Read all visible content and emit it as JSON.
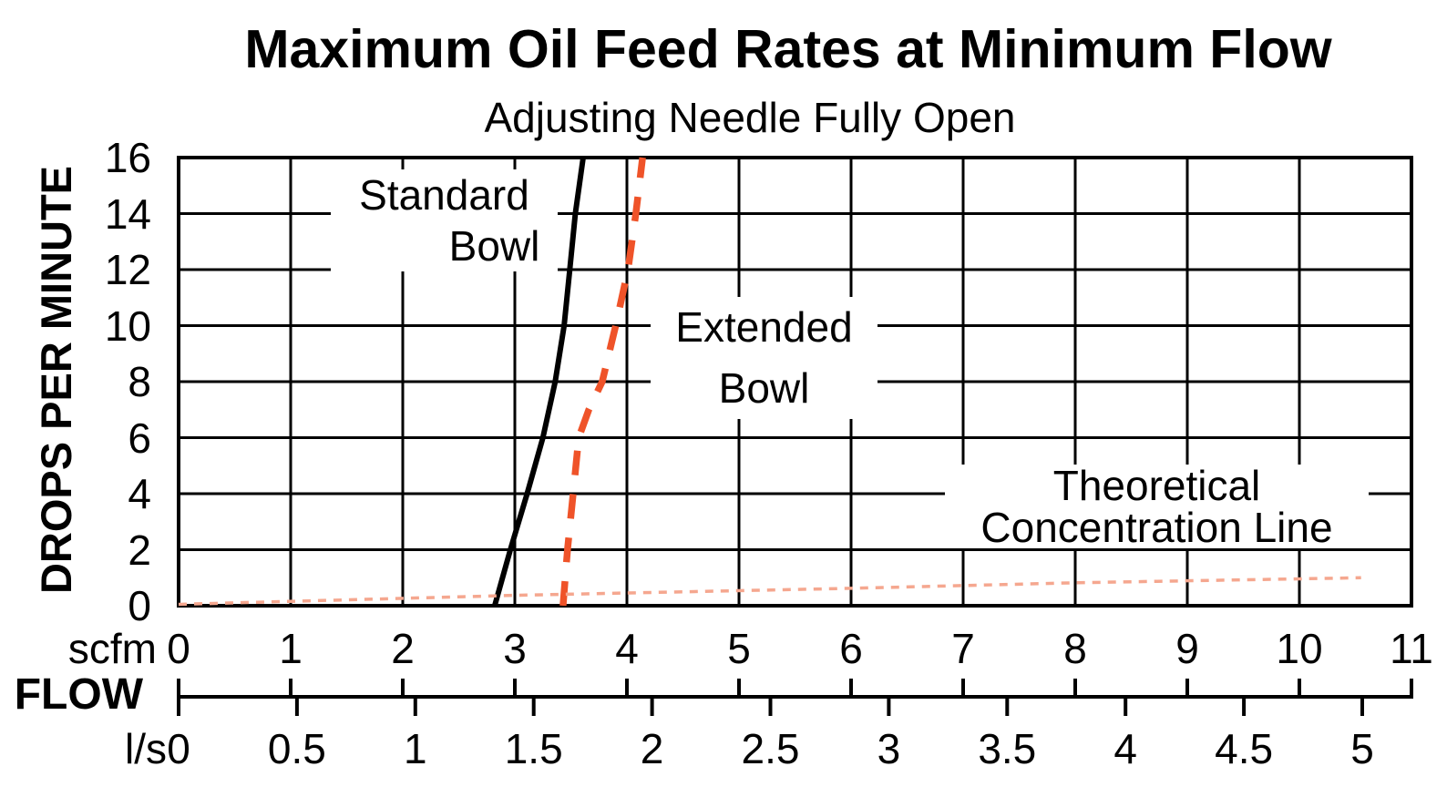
{
  "title": "Maximum Oil Feed Rates at Minimum Flow",
  "subtitle": "Adjusting Needle Fully Open",
  "y_axis": {
    "label": "DROPS PER MINUTE",
    "ticks": [
      "16",
      "14",
      "12",
      "10",
      "8",
      "6",
      "4",
      "2",
      "0"
    ]
  },
  "x_axis": {
    "label": "FLOW",
    "primary_unit": "scfm",
    "primary_ticks": [
      "0",
      "1",
      "2",
      "3",
      "4",
      "5",
      "6",
      "7",
      "8",
      "9",
      "10",
      "11"
    ],
    "secondary_unit": "l/s",
    "secondary_ticks": [
      "0",
      "0.5",
      "1",
      "1.5",
      "2",
      "2.5",
      "3",
      "3.5",
      "4",
      "4.5",
      "5"
    ]
  },
  "series_labels": {
    "standard": {
      "line1": "Standard",
      "line2": "Bowl"
    },
    "extended": {
      "line1": "Extended",
      "line2": "Bowl"
    },
    "theoretical": {
      "line1": "Theoretical",
      "line2": "Concentration Line"
    }
  },
  "colors": {
    "ink": "#000000",
    "extended_line": "#EF5329",
    "theoretical_line": "#F5A78F"
  },
  "chart_data": {
    "type": "line",
    "title": "Maximum Oil Feed Rates at Minimum Flow",
    "subtitle": "Adjusting Needle Fully Open",
    "xlabel": "FLOW",
    "ylabel": "DROPS PER MINUTE",
    "x_primary": {
      "unit": "scfm",
      "range": [
        0,
        11
      ],
      "tick_step": 1
    },
    "x_secondary": {
      "unit": "l/s",
      "range": [
        0,
        5
      ],
      "tick_step": 0.5
    },
    "ylim": [
      0,
      16
    ],
    "y_tick_step": 2,
    "grid": true,
    "legend_position": "inline-annotations",
    "series": [
      {
        "name": "Standard Bowl",
        "style": "solid",
        "color": "#000000",
        "x_unit": "scfm",
        "points": [
          [
            2.82,
            0
          ],
          [
            2.96,
            2
          ],
          [
            3.11,
            4
          ],
          [
            3.25,
            6
          ],
          [
            3.36,
            8
          ],
          [
            3.44,
            10
          ],
          [
            3.49,
            12
          ],
          [
            3.54,
            14
          ],
          [
            3.61,
            16
          ]
        ]
      },
      {
        "name": "Extended Bowl",
        "style": "dashed",
        "color": "#EF5329",
        "x_unit": "scfm",
        "points": [
          [
            3.43,
            0
          ],
          [
            3.47,
            2
          ],
          [
            3.52,
            4
          ],
          [
            3.57,
            6
          ],
          [
            3.66,
            7
          ],
          [
            3.78,
            8
          ],
          [
            3.9,
            10
          ],
          [
            4.01,
            12
          ],
          [
            4.08,
            14
          ],
          [
            4.14,
            16
          ]
        ]
      },
      {
        "name": "Theoretical Concentration Line",
        "style": "fine-dashed",
        "color": "#F5A78F",
        "x_unit": "scfm",
        "points": [
          [
            0,
            0.05
          ],
          [
            3,
            0.37
          ],
          [
            6,
            0.62
          ],
          [
            8,
            0.82
          ],
          [
            10.55,
            1.0
          ]
        ]
      }
    ],
    "annotations": [
      {
        "text": "Standard Bowl",
        "near_scfm": 2.4,
        "near_drops": 13.5
      },
      {
        "text": "Extended Bowl",
        "near_scfm": 5.2,
        "near_drops": 10.0
      },
      {
        "text": "Theoretical Concentration Line",
        "near_scfm": 8.5,
        "near_drops": 3.0
      }
    ]
  }
}
